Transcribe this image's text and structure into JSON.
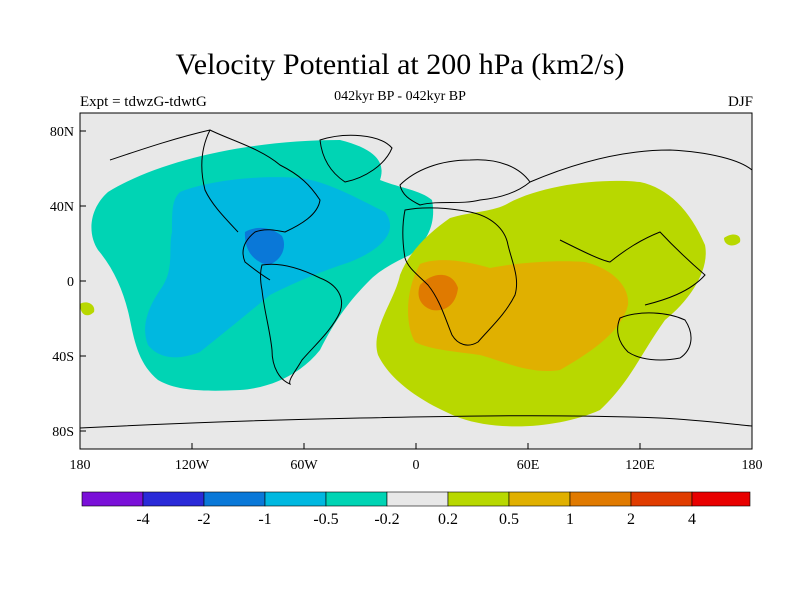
{
  "header": {
    "title": "Velocity Potential at 200 hPa (km2/s)",
    "subtitle": "042kyr BP - 042kyr BP",
    "left_label": "Expt = tdwzG-tdwtG",
    "right_label": "DJF"
  },
  "axes": {
    "lat_ticks": [
      "80N",
      "40N",
      "0",
      "40S",
      "80S"
    ],
    "lon_ticks": [
      "180",
      "120W",
      "60W",
      "0",
      "60E",
      "120E",
      "180"
    ]
  },
  "colorbar": {
    "colors": [
      "#7a10d8",
      "#2a2ad8",
      "#0a78d8",
      "#00b8e0",
      "#00d4b4",
      "#e8e8e8",
      "#b8d800",
      "#e0b000",
      "#e07a00",
      "#e03c00",
      "#e80000"
    ],
    "labels": [
      "-4",
      "-2",
      "-1",
      "-0.5",
      "-0.2",
      "0.2",
      "0.5",
      "1",
      "2",
      "4"
    ]
  },
  "colors": {
    "background": "#e8e8e8",
    "teal": "#00d4b4",
    "cyan": "#00b8e0",
    "blue": "#0a78d8",
    "yellowgreen": "#b8d800",
    "orange": "#e0b000",
    "darkorange": "#e07a00"
  }
}
